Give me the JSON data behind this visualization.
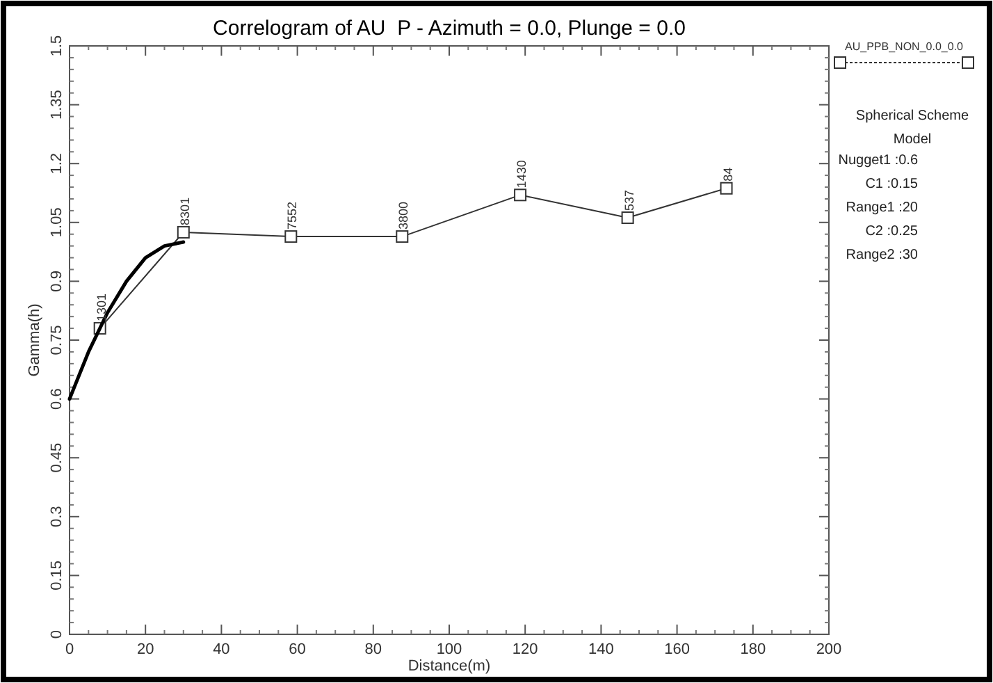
{
  "chart_data": {
    "type": "line",
    "title": "Correlogram of AU  P - Azimuth = 0.0, Plunge = 0.0",
    "xlabel": "Distance(m)",
    "ylabel": "Gamma(h)",
    "xlim": [
      0,
      200
    ],
    "xticks": [
      0,
      20,
      40,
      60,
      80,
      100,
      120,
      140,
      160,
      180,
      200
    ],
    "ylim": [
      0,
      1.5
    ],
    "yticks": [
      0,
      0.15,
      0.3,
      0.45,
      0.6,
      0.75,
      0.9,
      1.05,
      1.2,
      1.35,
      1.5
    ],
    "grid": false,
    "legend": "top right",
    "series": [
      {
        "name": "AU_PPB_NON_0.0_0.0",
        "color": "#333333",
        "marker": "square",
        "line_style": "solid",
        "x": [
          8,
          30,
          58.3,
          87.6,
          118.7,
          147,
          173
        ],
        "values": [
          0.78,
          1.025,
          1.014,
          1.014,
          1.12,
          1.062,
          1.137
        ]
      },
      {
        "color": "#000000",
        "marker": "none",
        "line_style": "solid",
        "x": [
          0,
          5,
          10,
          15,
          20,
          25,
          30
        ],
        "values": [
          0.6,
          0.72,
          0.82,
          0.9,
          0.96,
          0.99,
          1.0
        ]
      }
    ],
    "annotations": [
      {
        "text": "1301",
        "x": 8,
        "y": 0.78
      },
      {
        "text": "8301",
        "x": 30,
        "y": 1.025
      },
      {
        "text": "7552",
        "x": 58.3,
        "y": 1.014
      },
      {
        "text": "3800",
        "x": 87.6,
        "y": 1.014
      },
      {
        "text": "1430",
        "x": 118.7,
        "y": 1.12
      },
      {
        "text": "537",
        "x": 147,
        "y": 1.062
      },
      {
        "text": "84",
        "x": 173,
        "y": 1.137
      },
      "Spherical Scheme",
      "Model",
      "Nugget1 :0.6",
      "C1 :0.15",
      "Range1 :20",
      "C2 :0.25",
      "Range2 :30"
    ]
  }
}
